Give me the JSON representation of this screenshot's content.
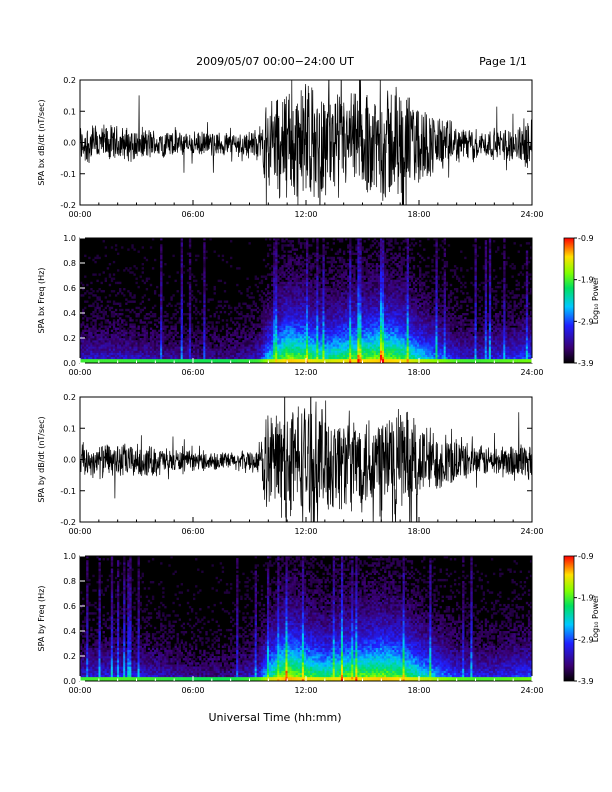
{
  "header": {
    "title": "2009/05/07  00:00−24:00 UT",
    "page": "Page 1/1"
  },
  "xlabel": "Universal Time (hh:mm)",
  "colorbar_label": "Log₁₀ Power",
  "chart_data": [
    {
      "type": "line",
      "ylabel": "SPA bx dB/dt (nT/sec)",
      "xlim": [
        "00:00",
        "24:00"
      ],
      "ylim": [
        -0.2,
        0.2
      ],
      "yticks": [
        "0.2",
        "0.1",
        "0.0",
        "-0.1",
        "-0.2"
      ],
      "xticks": [
        "00:00",
        "06:00",
        "12:00",
        "18:00",
        "24:00"
      ],
      "envelope": {
        "x_hours": [
          0,
          2,
          4,
          6,
          8,
          9.5,
          10,
          11,
          12,
          13,
          14,
          15,
          16,
          17,
          18,
          19,
          20,
          21,
          22,
          23,
          24
        ],
        "amplitude": [
          0.07,
          0.06,
          0.05,
          0.04,
          0.04,
          0.05,
          0.15,
          0.2,
          0.2,
          0.17,
          0.16,
          0.17,
          0.2,
          0.2,
          0.13,
          0.1,
          0.06,
          0.05,
          0.05,
          0.06,
          0.09
        ]
      },
      "color": "#000000"
    },
    {
      "type": "heatmap",
      "ylabel": "SPA bx Freq (Hz)",
      "xlim": [
        "00:00",
        "24:00"
      ],
      "ylim": [
        0.0,
        1.0
      ],
      "yticks": [
        "1.0",
        "0.8",
        "0.6",
        "0.4",
        "0.2",
        "0.0"
      ],
      "xticks": [
        "00:00",
        "06:00",
        "12:00",
        "18:00",
        "24:00"
      ],
      "colorbar": {
        "min": -3.9,
        "max": -0.9,
        "ticks": [
          "-0.9",
          "-1.9",
          "-2.9",
          "-3.9"
        ]
      },
      "activity": {
        "x_hours": [
          0,
          2,
          4,
          6,
          8,
          9.5,
          10,
          11,
          12,
          13,
          14,
          15,
          16,
          17,
          18,
          19,
          20,
          21,
          22,
          23,
          24
        ],
        "level": [
          0.3,
          0.3,
          0.25,
          0.2,
          0.2,
          0.3,
          0.6,
          0.9,
          0.85,
          0.7,
          0.8,
          0.85,
          0.9,
          0.85,
          0.65,
          0.5,
          0.35,
          0.3,
          0.35,
          0.4,
          0.45
        ]
      }
    },
    {
      "type": "line",
      "ylabel": "SPA by dB/dt (nT/sec)",
      "xlim": [
        "00:00",
        "24:00"
      ],
      "ylim": [
        -0.2,
        0.2
      ],
      "yticks": [
        "0.2",
        "0.1",
        "0.0",
        "-0.1",
        "-0.2"
      ],
      "xticks": [
        "00:00",
        "06:00",
        "12:00",
        "18:00",
        "24:00"
      ],
      "envelope": {
        "x_hours": [
          0,
          2,
          4,
          6,
          8,
          9.5,
          10,
          11,
          12,
          13,
          14,
          15,
          16,
          17,
          18,
          19,
          20,
          21,
          22,
          23,
          24
        ],
        "amplitude": [
          0.05,
          0.06,
          0.05,
          0.03,
          0.03,
          0.04,
          0.17,
          0.2,
          0.2,
          0.19,
          0.16,
          0.16,
          0.18,
          0.19,
          0.14,
          0.1,
          0.07,
          0.05,
          0.05,
          0.06,
          0.07
        ]
      },
      "color": "#000000"
    },
    {
      "type": "heatmap",
      "ylabel": "SPA by Freq (Hz)",
      "xlim": [
        "00:00",
        "24:00"
      ],
      "ylim": [
        0.0,
        1.0
      ],
      "yticks": [
        "1.0",
        "0.8",
        "0.6",
        "0.4",
        "0.2",
        "0.0"
      ],
      "xticks": [
        "00:00",
        "06:00",
        "12:00",
        "18:00",
        "24:00"
      ],
      "colorbar": {
        "min": -3.9,
        "max": -0.9,
        "ticks": [
          "-0.9",
          "-1.9",
          "-2.9",
          "-3.9"
        ]
      },
      "activity": {
        "x_hours": [
          0,
          2,
          4,
          6,
          8,
          9.5,
          10,
          11,
          12,
          13,
          14,
          15,
          16,
          17,
          18,
          19,
          20,
          21,
          22,
          23,
          24
        ],
        "level": [
          0.3,
          0.35,
          0.3,
          0.2,
          0.2,
          0.35,
          0.7,
          0.95,
          0.85,
          0.75,
          0.85,
          0.85,
          0.9,
          0.85,
          0.7,
          0.55,
          0.4,
          0.35,
          0.35,
          0.4,
          0.45
        ]
      }
    }
  ]
}
